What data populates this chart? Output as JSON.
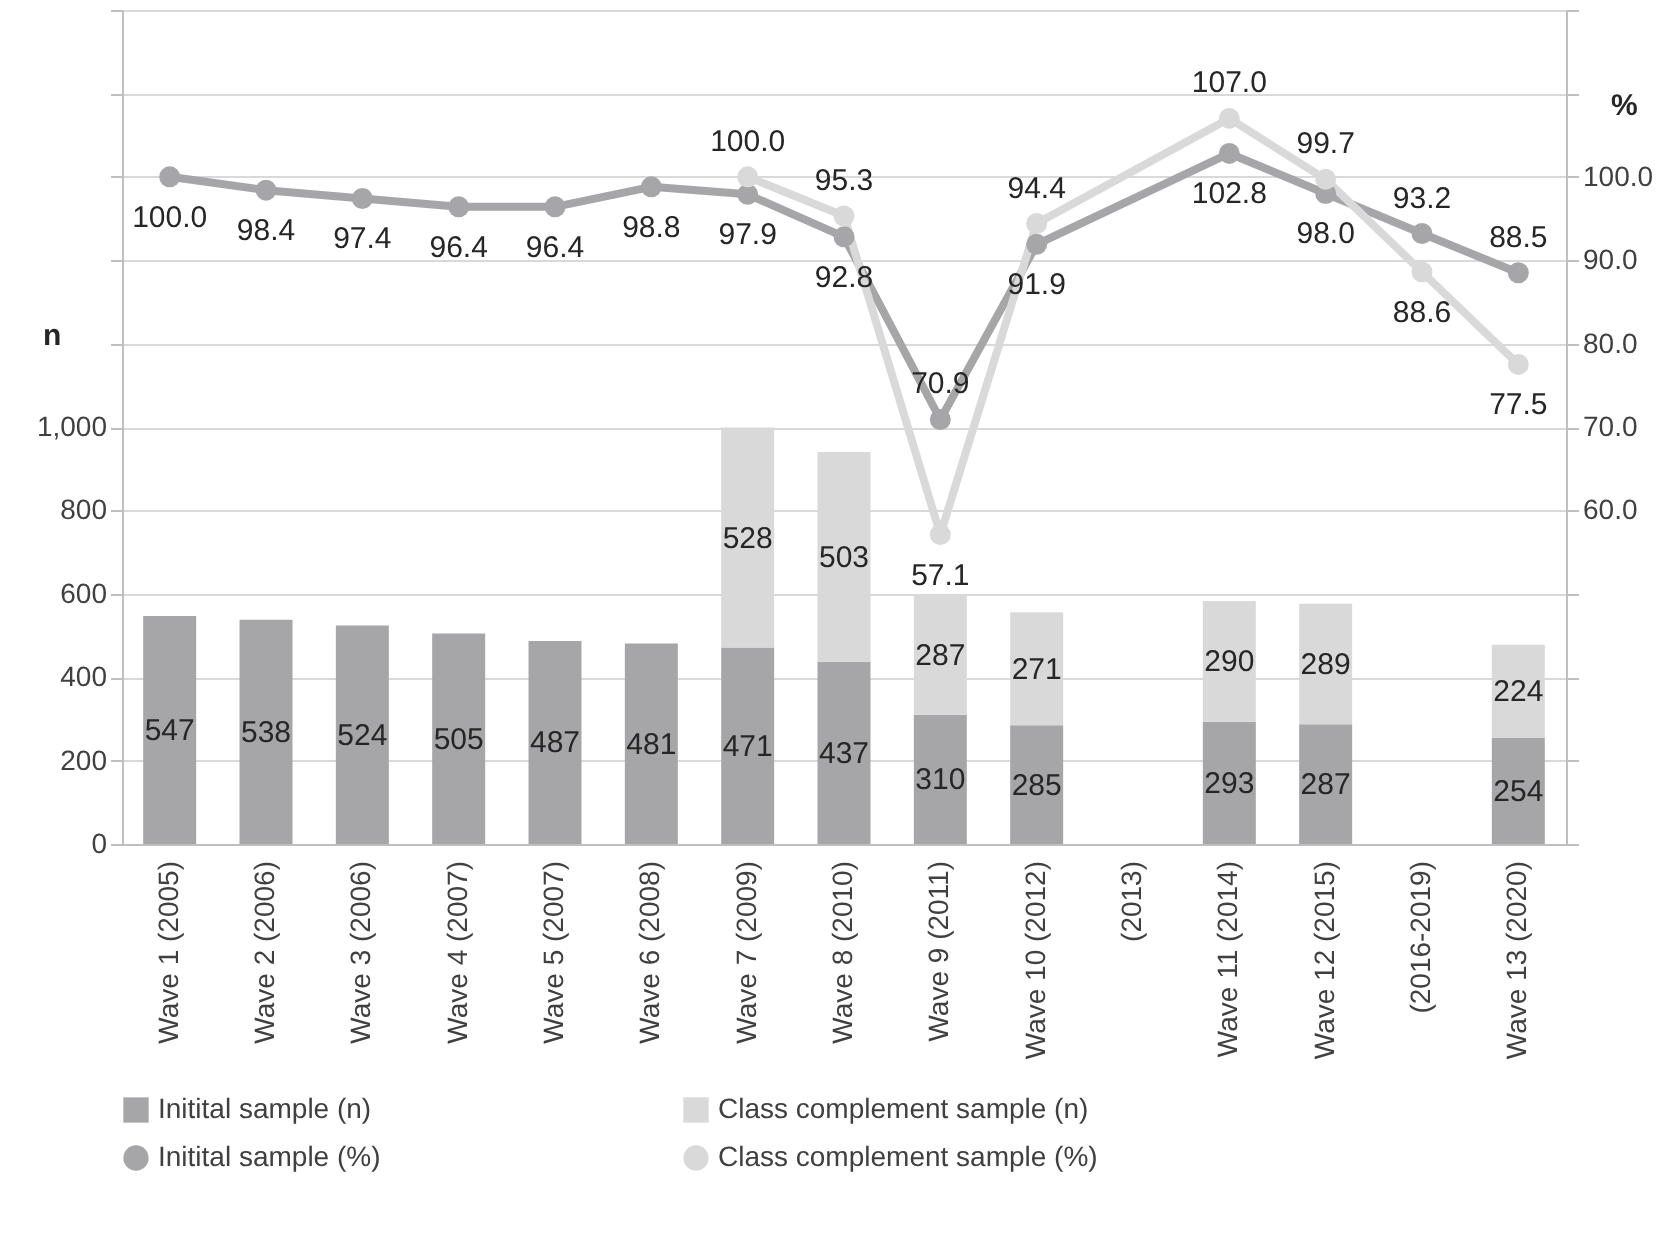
{
  "chart_data": {
    "type": "bar",
    "stacked": true,
    "categories": [
      "Wave 1 (2005)",
      "Wave 2 (2006)",
      "Wave 3 (2006)",
      "Wave 4 (2007)",
      "Wave 5 (2007)",
      "Wave 6 (2008)",
      "Wave 7 (2009)",
      "Wave 8 (2010)",
      "Wave 9 (2011)",
      "Wave 10 (2012)",
      "(2013)",
      "Wave 11 (2014)",
      "Wave 12 (2015)",
      "(2016-2019)",
      "Wave 13 (2020)"
    ],
    "series": [
      {
        "name": "Initital sample (n)",
        "color": "#a6a6a8",
        "values": [
          547,
          538,
          524,
          505,
          487,
          481,
          471,
          437,
          310,
          285,
          null,
          293,
          287,
          null,
          254
        ]
      },
      {
        "name": "Class complement sample (n)",
        "color": "#d9d9d9",
        "values": [
          null,
          null,
          null,
          null,
          null,
          null,
          528,
          503,
          287,
          271,
          null,
          290,
          289,
          null,
          224
        ]
      },
      {
        "name": "Initital sample (%)",
        "type": "line",
        "axis": "y2",
        "color": "#a6a6a8",
        "values": [
          100.0,
          98.4,
          97.4,
          96.4,
          96.4,
          98.8,
          97.9,
          92.8,
          70.9,
          91.9,
          null,
          102.8,
          98.0,
          93.2,
          88.5
        ],
        "value_labels": [
          "100.0",
          "98.4",
          "97.4",
          "96.4",
          "96.4",
          "98.8",
          "97.9",
          "92.8",
          "70.9",
          "91.9",
          null,
          "102.8",
          "98.0",
          "93.2",
          "88.5"
        ]
      },
      {
        "name": "Class complement sample (%)",
        "type": "line",
        "axis": "y2",
        "color": "#d9d9d9",
        "values": [
          null,
          null,
          null,
          null,
          null,
          null,
          100.0,
          95.3,
          57.1,
          94.4,
          null,
          107.0,
          99.7,
          88.6,
          77.5
        ],
        "value_labels": [
          null,
          null,
          null,
          null,
          null,
          null,
          "100.0",
          "95.3",
          "57.1",
          "94.4",
          null,
          "107.0",
          "99.7",
          "88.6",
          "77.5"
        ]
      }
    ],
    "ylabel": "n",
    "y2label": "%",
    "ylim": [
      0,
      2000
    ],
    "yticks": [
      0,
      200,
      400,
      600,
      800,
      {
        "value": 1000,
        "label": "1,000"
      },
      {
        "value": 1200,
        "label": null
      },
      {
        "value": 1400,
        "label": null
      },
      {
        "value": 1600,
        "label": null
      },
      {
        "value": 1800,
        "label": null
      },
      {
        "value": 2000,
        "label": null
      }
    ],
    "y2lim": [
      20,
      120
    ],
    "y2ticks": [
      {
        "value": 20,
        "label": null
      },
      {
        "value": 30,
        "label": null
      },
      {
        "value": 40,
        "label": null
      },
      {
        "value": 50,
        "label": null
      },
      {
        "value": 60,
        "label": "60.0"
      },
      {
        "value": 70,
        "label": "70.0"
      },
      {
        "value": 80,
        "label": "80.0"
      },
      {
        "value": 90,
        "label": "90.0"
      },
      {
        "value": 100,
        "label": "100.0"
      },
      {
        "value": 110,
        "label": null
      },
      {
        "value": 120,
        "label": null
      }
    ],
    "grid": "y",
    "legend": "bottom",
    "marker": "circle",
    "line_style": "solid",
    "data_labels": true
  }
}
